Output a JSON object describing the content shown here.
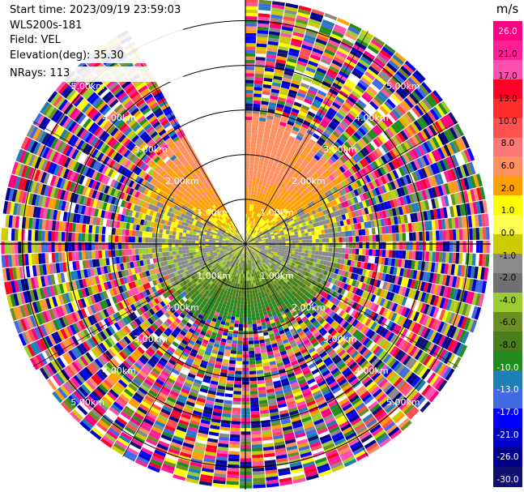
{
  "info": {
    "start_time": "Start time: 2023/09/19 23:59:03",
    "station": "WLS200s-181",
    "field": "Field: VEL",
    "elevation": "Elevation(deg): 35.30",
    "nrays": "NRays: 113"
  },
  "colorbar": {
    "unit": "m/s",
    "ticks": [
      "26.0",
      "21.0",
      "17.0",
      "13.0",
      "10.0",
      "8.0",
      "6.0",
      "2.0",
      "1.0",
      "0.0",
      "-1.0",
      "-2.0",
      "-4.0",
      "-6.0",
      "-8.0",
      "-10.0",
      "-13.0",
      "-17.0",
      "-21.0",
      "-26.0",
      "-30.0"
    ],
    "colors": [
      "#ff0080",
      "#ff1e96",
      "#ff50b0",
      "#ff0028",
      "#ff2c2c",
      "#ff5050",
      "#ff7878",
      "#ff9060",
      "#ffa000",
      "#ffff00",
      "#ffff50",
      "#cccc00",
      "#8a8a8a",
      "#707070",
      "#9acd32",
      "#6b8e23",
      "#4a7d1c",
      "#228b22",
      "#1e7fb4",
      "#4169e1",
      "#0000ff",
      "#0000c8",
      "#00008b",
      "#101070"
    ]
  },
  "chart_data": {
    "type": "heatmap",
    "title": "",
    "xlabel": "",
    "ylabel": "",
    "field": "VEL",
    "elevation_deg": 35.3,
    "nrays": 113,
    "unit": "m/s",
    "range_rings_km": [
      1.0,
      2.0,
      3.0,
      4.0,
      5.0
    ],
    "range_labels": [
      "1.00km",
      "2.00km",
      "3.00km",
      "4.00km",
      "5.00km"
    ],
    "max_range_km": 5.5,
    "missing_sector_deg": [
      -30,
      0
    ],
    "value_range": [
      -30.0,
      26.0
    ],
    "grid": true
  }
}
